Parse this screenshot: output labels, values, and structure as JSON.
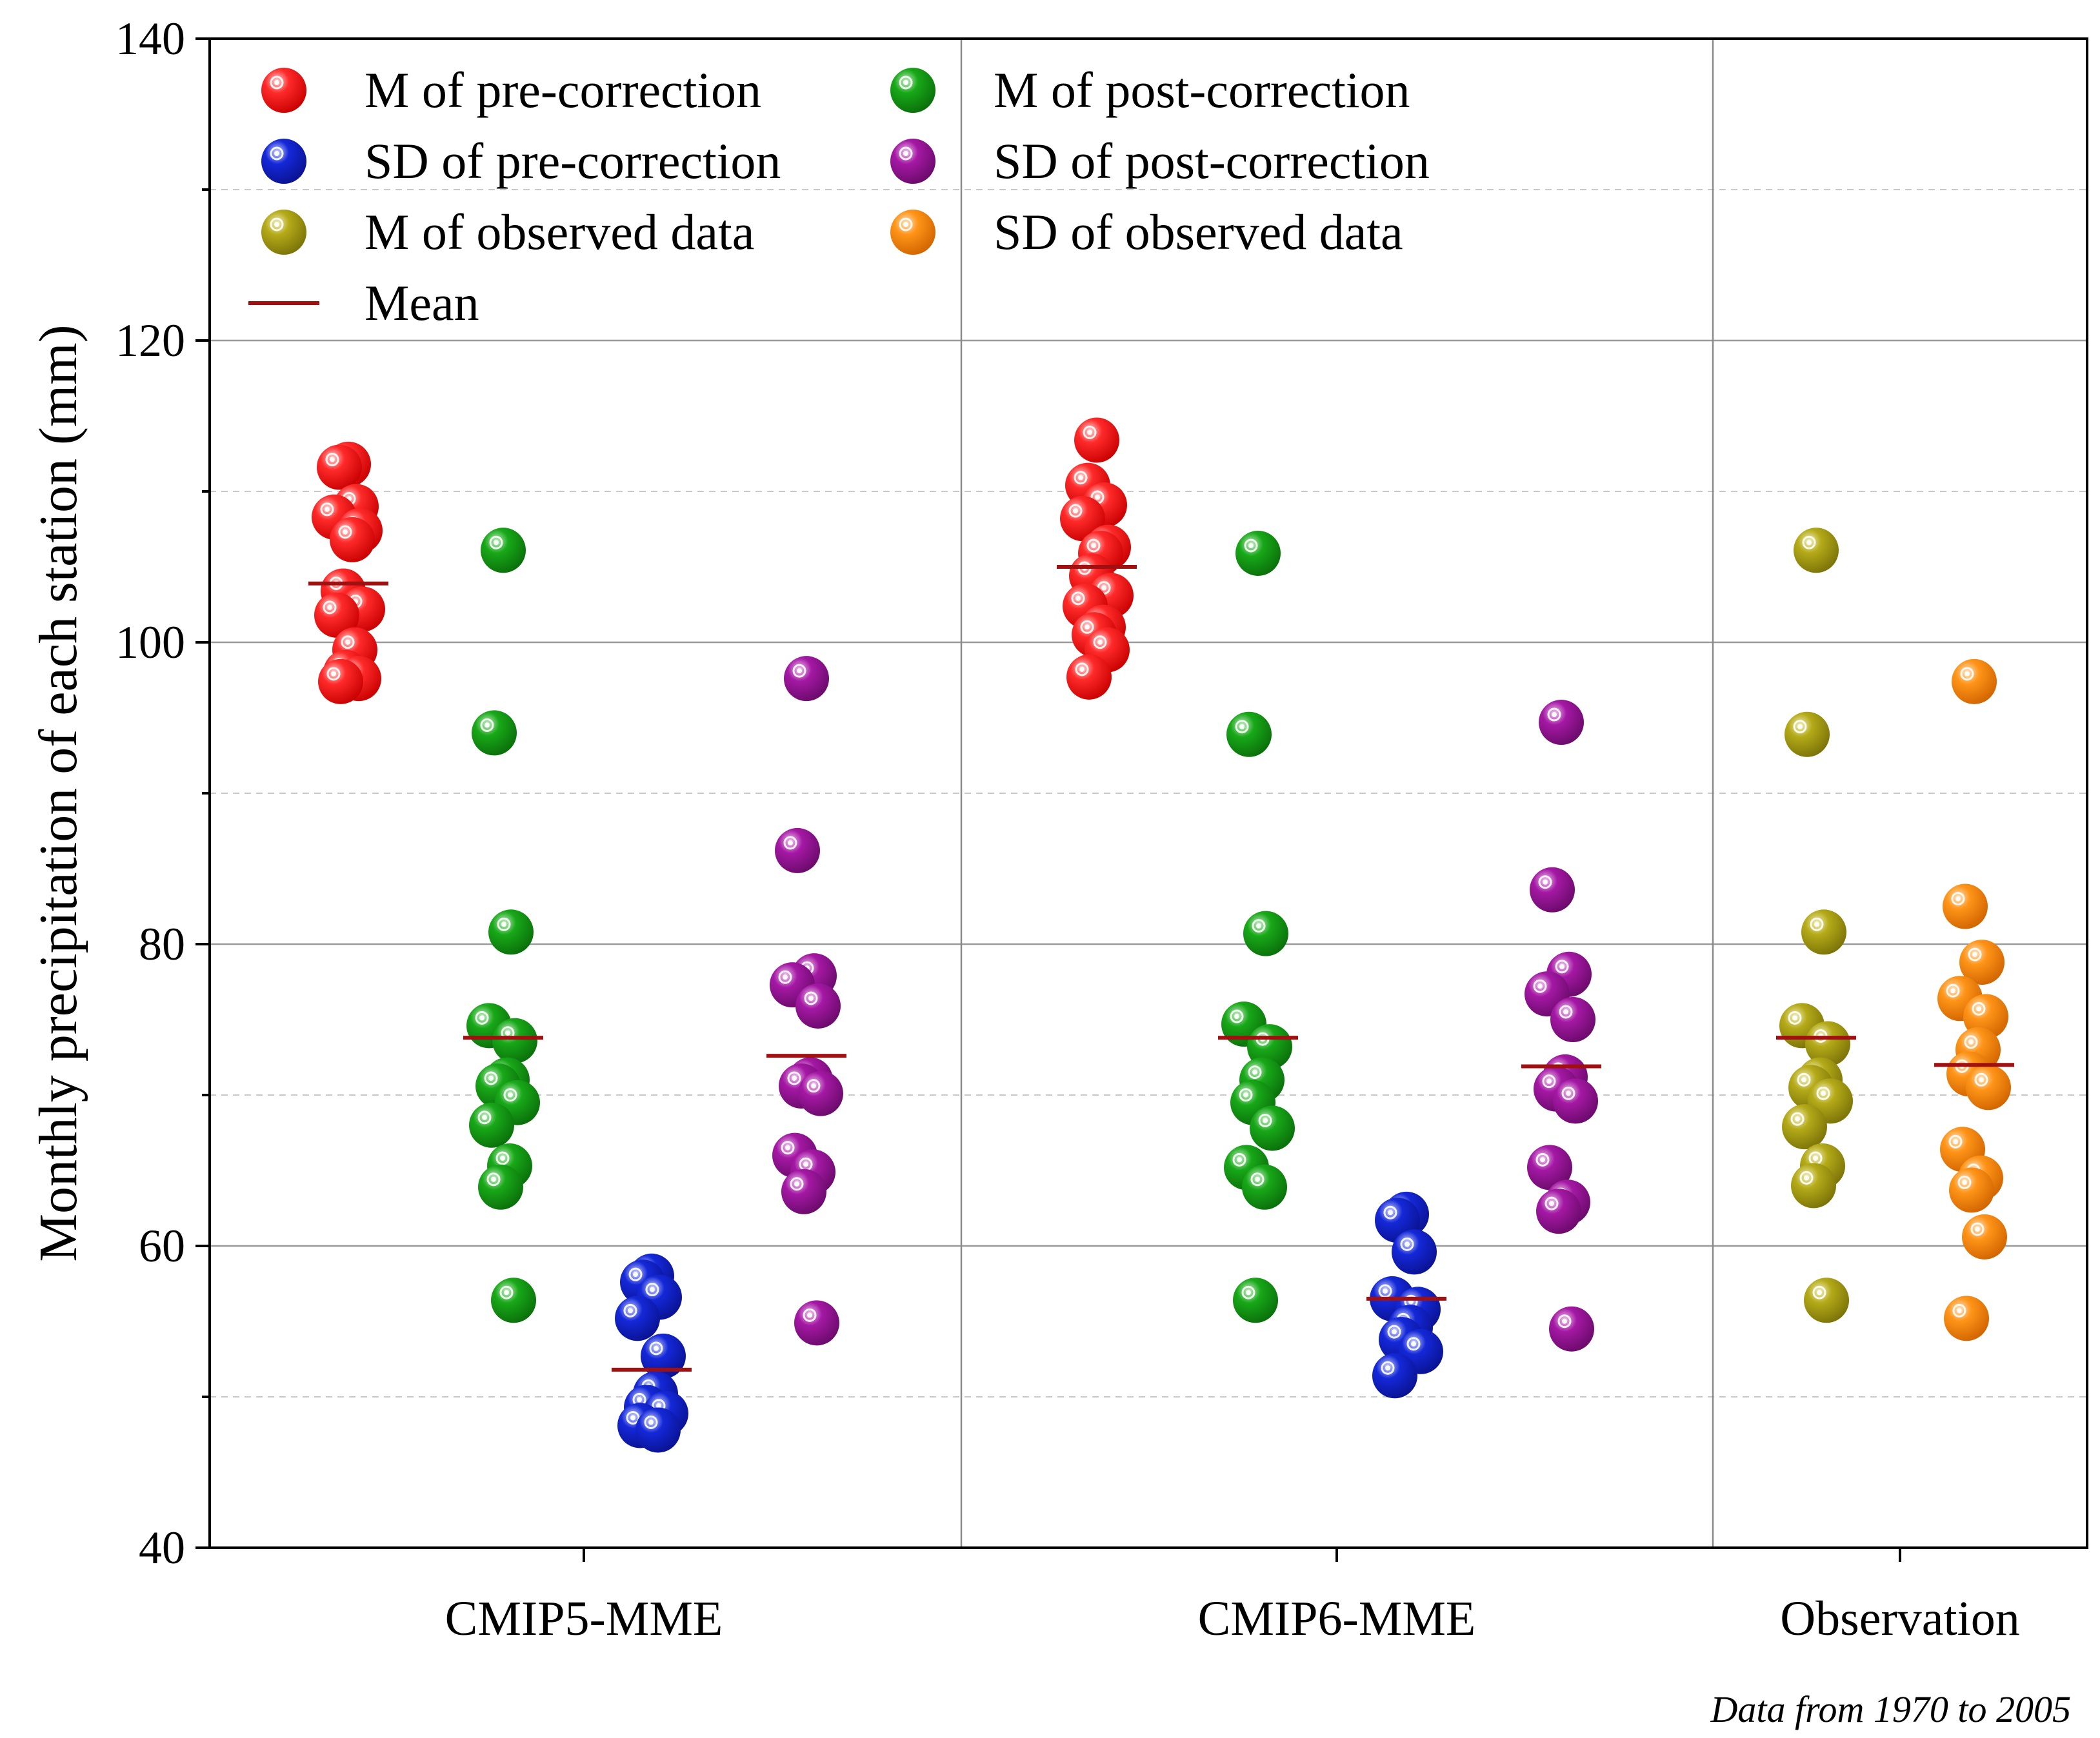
{
  "chart_data": {
    "type": "scatter",
    "ylabel": "Monthly precipitation of each station (mm)",
    "ylim": [
      40,
      140
    ],
    "yticks": [
      40,
      60,
      80,
      100,
      120,
      140
    ],
    "grid": true,
    "categories": [
      "CMIP5-MME",
      "CMIP6-MME",
      "Observation"
    ],
    "note": "Data from 1970 to 2005",
    "legend": [
      {
        "key": "m_pre",
        "label": "M of pre-correction",
        "color": "#ff1010"
      },
      {
        "key": "m_post",
        "label": "M of post-correction",
        "color": "#109a10"
      },
      {
        "key": "sd_pre",
        "label": "SD of pre-correction",
        "color": "#1020c8"
      },
      {
        "key": "sd_post",
        "label": "SD of post-correction",
        "color": "#9a109a"
      },
      {
        "key": "m_obs",
        "label": "M of observed data",
        "color": "#aaa010"
      },
      {
        "key": "sd_obs",
        "label": "SD of observed data",
        "color": "#ff8a10"
      },
      {
        "key": "mean",
        "label": "Mean",
        "color": "#a01010"
      }
    ],
    "groups": [
      {
        "category": "CMIP5-MME",
        "series": [
          {
            "key": "m_pre",
            "mean": 103.9,
            "values": [
              111.8,
              111.6,
              109.0,
              108.3,
              107.4,
              106.8,
              103.4,
              102.2,
              101.8,
              99.5,
              98.0,
              97.6,
              97.4
            ]
          },
          {
            "key": "m_post",
            "mean": 73.8,
            "values": [
              106.1,
              94.0,
              80.8,
              74.6,
              73.6,
              71.0,
              70.6,
              69.5,
              68.0,
              65.3,
              63.9,
              56.4
            ]
          },
          {
            "key": "sd_pre",
            "mean": 51.8,
            "values": [
              58.0,
              57.6,
              56.6,
              55.2,
              52.7,
              50.2,
              49.3,
              48.9,
              48.1,
              47.8
            ]
          },
          {
            "key": "sd_post",
            "mean": 72.6,
            "values": [
              97.6,
              86.2,
              77.9,
              77.3,
              75.9,
              71.0,
              70.6,
              70.1,
              66.0,
              64.9,
              63.6,
              54.9
            ]
          }
        ]
      },
      {
        "category": "CMIP6-MME",
        "series": [
          {
            "key": "m_pre",
            "mean": 105.0,
            "values": [
              113.4,
              110.4,
              109.1,
              108.2,
              106.3,
              105.9,
              104.4,
              103.1,
              102.4,
              101.0,
              100.5,
              99.5,
              97.7
            ]
          },
          {
            "key": "m_post",
            "mean": 73.8,
            "values": [
              105.9,
              93.9,
              80.7,
              74.7,
              73.2,
              71.0,
              69.5,
              67.8,
              65.2,
              63.9,
              56.4
            ]
          },
          {
            "key": "sd_pre",
            "mean": 56.5,
            "values": [
              62.1,
              61.7,
              59.6,
              56.5,
              55.8,
              54.6,
              53.8,
              53.0,
              51.4
            ]
          },
          {
            "key": "sd_post",
            "mean": 71.9,
            "values": [
              94.7,
              83.6,
              78.0,
              76.7,
              75.0,
              71.2,
              70.4,
              69.6,
              65.2,
              62.9,
              62.3,
              54.5
            ]
          }
        ]
      },
      {
        "category": "Observation",
        "series": [
          {
            "key": "m_obs",
            "mean": 73.8,
            "values": [
              106.1,
              93.9,
              80.8,
              74.6,
              73.4,
              71.0,
              70.5,
              69.6,
              67.9,
              65.3,
              64.0,
              56.4
            ]
          },
          {
            "key": "sd_obs",
            "mean": 72.0,
            "values": [
              97.4,
              82.5,
              78.8,
              76.4,
              75.2,
              73.0,
              71.4,
              70.5,
              66.4,
              64.5,
              63.7,
              60.6,
              55.2
            ]
          }
        ]
      }
    ]
  }
}
